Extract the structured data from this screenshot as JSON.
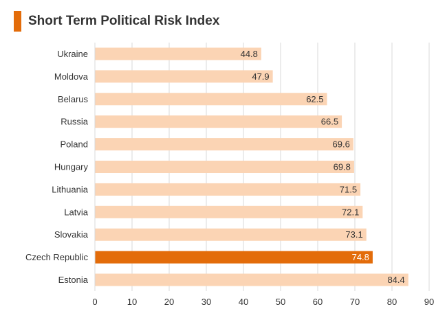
{
  "title": "Short Term Political Risk Index",
  "colors": {
    "accent": "#E36C0A",
    "bar": "#FBD4B4",
    "highlight": "#E36C0A",
    "grid": "#D9D9D9",
    "text": "#333333",
    "highlight_label": "#FFFFFF"
  },
  "chart_data": {
    "type": "bar",
    "orientation": "horizontal",
    "title": "Short Term Political Risk Index",
    "categories": [
      "Ukraine",
      "Moldova",
      "Belarus",
      "Russia",
      "Poland",
      "Hungary",
      "Lithuania",
      "Latvia",
      "Slovakia",
      "Czech Republic",
      "Estonia"
    ],
    "values": [
      44.8,
      47.9,
      62.5,
      66.5,
      69.6,
      69.8,
      71.5,
      72.1,
      73.1,
      74.8,
      84.4
    ],
    "value_labels": [
      "44.8",
      "47.9",
      "62.5",
      "66.5",
      "69.6",
      "69.8",
      "71.5",
      "72.1",
      "73.1",
      "74.8",
      "84.4"
    ],
    "highlighted_category": "Czech Republic",
    "xlim": [
      0,
      90
    ],
    "xticks": [
      "0",
      "10",
      "20",
      "30",
      "40",
      "50",
      "60",
      "70",
      "80",
      "90"
    ],
    "grid": true,
    "legend": false,
    "xlabel": "",
    "ylabel": ""
  }
}
